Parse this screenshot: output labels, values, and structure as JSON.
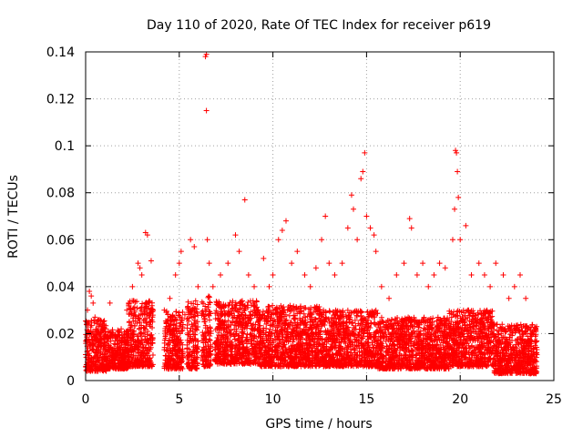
{
  "chart_data": {
    "type": "scatter",
    "title": "Day 110 of 2020, Rate Of TEC Index for receiver p619",
    "xlabel": "GPS time / hours",
    "ylabel": "ROTI / TECUs",
    "xlim": [
      0,
      25
    ],
    "ylim": [
      0,
      0.14
    ],
    "xticks": [
      0,
      5,
      10,
      15,
      20,
      25
    ],
    "yticks": [
      0,
      0.02,
      0.04,
      0.06,
      0.08,
      0.1,
      0.12,
      0.14
    ],
    "xtick_labels": [
      "0",
      "5",
      "10",
      "15",
      "20",
      "25"
    ],
    "ytick_labels": [
      "0",
      "0.02",
      "0.04",
      "0.06",
      "0.08",
      "0.1",
      "0.12",
      "0.14"
    ],
    "grid": true,
    "marker": "+",
    "color": "#ff0000",
    "series": [
      {
        "name": "ROTI",
        "points": [
          [
            0.05,
            0.024
          ],
          [
            0.1,
            0.03
          ],
          [
            0.2,
            0.038
          ],
          [
            0.3,
            0.036
          ],
          [
            0.4,
            0.033
          ],
          [
            0.5,
            0.027
          ],
          [
            0.7,
            0.02
          ],
          [
            0.9,
            0.022
          ],
          [
            1.0,
            0.015
          ],
          [
            1.3,
            0.033
          ],
          [
            1.6,
            0.018
          ],
          [
            1.9,
            0.022
          ],
          [
            2.2,
            0.03
          ],
          [
            2.5,
            0.04
          ],
          [
            2.8,
            0.05
          ],
          [
            2.9,
            0.048
          ],
          [
            3.0,
            0.045
          ],
          [
            3.2,
            0.063
          ],
          [
            3.3,
            0.062
          ],
          [
            3.5,
            0.051
          ],
          [
            3.6,
            0.03
          ],
          [
            4.2,
            0.03
          ],
          [
            4.5,
            0.035
          ],
          [
            4.8,
            0.045
          ],
          [
            5.0,
            0.05
          ],
          [
            5.1,
            0.055
          ],
          [
            5.3,
            0.028
          ],
          [
            5.6,
            0.06
          ],
          [
            5.8,
            0.057
          ],
          [
            6.0,
            0.04
          ],
          [
            6.4,
            0.138
          ],
          [
            6.45,
            0.139
          ],
          [
            6.45,
            0.115
          ],
          [
            6.5,
            0.06
          ],
          [
            6.6,
            0.05
          ],
          [
            6.8,
            0.04
          ],
          [
            7.2,
            0.045
          ],
          [
            7.6,
            0.05
          ],
          [
            8.0,
            0.062
          ],
          [
            8.2,
            0.055
          ],
          [
            8.5,
            0.077
          ],
          [
            8.7,
            0.045
          ],
          [
            9.0,
            0.04
          ],
          [
            9.5,
            0.052
          ],
          [
            9.8,
            0.04
          ],
          [
            10.0,
            0.045
          ],
          [
            10.3,
            0.06
          ],
          [
            10.5,
            0.064
          ],
          [
            10.7,
            0.068
          ],
          [
            11.0,
            0.05
          ],
          [
            11.3,
            0.055
          ],
          [
            11.7,
            0.045
          ],
          [
            12.0,
            0.04
          ],
          [
            12.3,
            0.048
          ],
          [
            12.6,
            0.06
          ],
          [
            12.8,
            0.07
          ],
          [
            13.0,
            0.05
          ],
          [
            13.3,
            0.045
          ],
          [
            13.7,
            0.05
          ],
          [
            14.0,
            0.065
          ],
          [
            14.2,
            0.079
          ],
          [
            14.3,
            0.073
          ],
          [
            14.5,
            0.06
          ],
          [
            14.7,
            0.086
          ],
          [
            14.8,
            0.089
          ],
          [
            14.9,
            0.097
          ],
          [
            15.0,
            0.07
          ],
          [
            15.2,
            0.065
          ],
          [
            15.4,
            0.062
          ],
          [
            15.5,
            0.055
          ],
          [
            15.8,
            0.04
          ],
          [
            16.2,
            0.035
          ],
          [
            16.6,
            0.045
          ],
          [
            17.0,
            0.05
          ],
          [
            17.3,
            0.069
          ],
          [
            17.4,
            0.065
          ],
          [
            17.7,
            0.045
          ],
          [
            18.0,
            0.05
          ],
          [
            18.3,
            0.04
          ],
          [
            18.6,
            0.045
          ],
          [
            18.9,
            0.05
          ],
          [
            19.2,
            0.048
          ],
          [
            19.6,
            0.06
          ],
          [
            19.7,
            0.073
          ],
          [
            19.75,
            0.098
          ],
          [
            19.8,
            0.097
          ],
          [
            19.85,
            0.089
          ],
          [
            19.9,
            0.078
          ],
          [
            20.0,
            0.06
          ],
          [
            20.3,
            0.066
          ],
          [
            20.6,
            0.045
          ],
          [
            21.0,
            0.05
          ],
          [
            21.3,
            0.045
          ],
          [
            21.6,
            0.04
          ],
          [
            21.9,
            0.05
          ],
          [
            22.3,
            0.045
          ],
          [
            22.6,
            0.035
          ],
          [
            22.9,
            0.04
          ],
          [
            23.2,
            0.045
          ],
          [
            23.5,
            0.035
          ],
          [
            23.8,
            0.02
          ],
          [
            24.0,
            0.015
          ],
          [
            0.3,
            0.006
          ],
          [
            1.2,
            0.005
          ],
          [
            2.4,
            0.006
          ],
          [
            3.4,
            0.008
          ],
          [
            4.4,
            0.005
          ],
          [
            5.5,
            0.006
          ],
          [
            7.0,
            0.008
          ],
          [
            8.8,
            0.007
          ],
          [
            11.5,
            0.006
          ],
          [
            13.5,
            0.007
          ],
          [
            16.0,
            0.005
          ],
          [
            18.0,
            0.006
          ],
          [
            21.0,
            0.006
          ],
          [
            22.8,
            0.004
          ],
          [
            23.7,
            0.003
          ]
        ]
      }
    ],
    "noise_segments": [
      [
        0.0,
        1.1,
        0.004,
        0.026
      ],
      [
        1.1,
        2.3,
        0.005,
        0.022
      ],
      [
        2.3,
        3.6,
        0.006,
        0.034
      ],
      [
        4.2,
        5.2,
        0.005,
        0.03
      ],
      [
        5.4,
        6.0,
        0.005,
        0.034
      ],
      [
        6.2,
        6.7,
        0.006,
        0.036
      ],
      [
        6.9,
        9.3,
        0.007,
        0.034
      ],
      [
        9.3,
        12.6,
        0.006,
        0.032
      ],
      [
        12.6,
        15.6,
        0.006,
        0.03
      ],
      [
        15.6,
        19.4,
        0.005,
        0.027
      ],
      [
        19.4,
        21.8,
        0.006,
        0.03
      ],
      [
        21.8,
        24.1,
        0.003,
        0.024
      ]
    ]
  }
}
